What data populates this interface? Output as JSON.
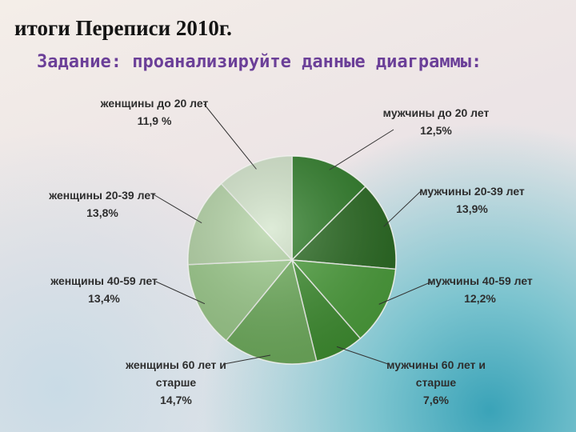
{
  "chart_data": {
    "type": "pie",
    "title": "итоги Переписи 2010г.",
    "subtitle": "Задание: проанализируйте данные диаграммы:",
    "categories": [
      "мужчины до 20 лет",
      "мужчины 20-39 лет",
      "мужчины 40-59 лет",
      "мужчины 60 лет и старше",
      "женщины 60 лет и старше",
      "женщины 40-59 лет",
      "женщины 20-39 лет",
      "женщины до 20 лет"
    ],
    "values": [
      12.5,
      13.9,
      12.2,
      7.6,
      14.7,
      13.4,
      13.8,
      11.9
    ],
    "value_labels": [
      "12,5%",
      "13,9%",
      "12,2%",
      "7,6%",
      "14,7%",
      "13,4%",
      "13,8%",
      "11,9 %"
    ],
    "colors": [
      "#2e7d28",
      "#2a6b22",
      "#4c9f3c",
      "#3f8f31",
      "#6fae5d",
      "#9ccb8b",
      "#b4d4a6",
      "#d3e5cb"
    ]
  }
}
